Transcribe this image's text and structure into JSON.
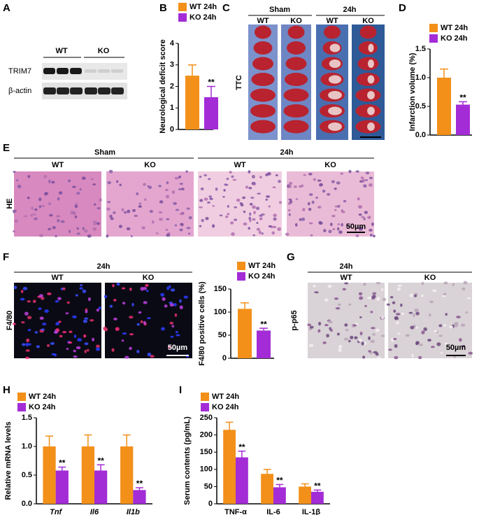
{
  "panels": {
    "labels": [
      "A",
      "B",
      "C",
      "D",
      "E",
      "F",
      "G",
      "H",
      "I"
    ]
  },
  "blot": {
    "groups": [
      "WT",
      "KO"
    ],
    "rows": [
      "TRIM7",
      "β-actin"
    ]
  },
  "ttc": {
    "groups": [
      "Sham",
      "24h"
    ],
    "columns": [
      "WT",
      "KO",
      "WT",
      "KO"
    ],
    "stain": "TTC"
  },
  "he": {
    "groups": [
      "Sham",
      "24h"
    ],
    "columns": [
      "WT",
      "KO",
      "WT",
      "KO"
    ],
    "stain": "HE",
    "scale_bar": "50µm"
  },
  "f480": {
    "group": "24h",
    "columns": [
      "WT",
      "KO"
    ],
    "stain": "F4/80",
    "scale_bar": "50µm"
  },
  "pp65": {
    "group": "24h",
    "columns": [
      "WT",
      "KO"
    ],
    "stain": "p-p65",
    "scale_bar": "50µm"
  },
  "chart_data": [
    {
      "type": "bar",
      "ylabel": "Neurological deficit score",
      "categories": [
        null
      ],
      "series": [
        {
          "name": "WT 24h",
          "color": "#f39019",
          "values": [
            2.5
          ],
          "errors": [
            0.5
          ]
        },
        {
          "name": "KO 24h",
          "color": "#a32cd6",
          "values": [
            1.5
          ],
          "errors": [
            0.5
          ],
          "annotations": [
            "**"
          ]
        }
      ],
      "ylim": [
        0,
        4
      ],
      "yticks": [
        0,
        1,
        2,
        3,
        4
      ],
      "legend": "upper right"
    },
    {
      "type": "bar",
      "ylabel": "Infarction volume (%)",
      "categories": [
        null
      ],
      "series": [
        {
          "name": "WT 24h",
          "color": "#f39019",
          "values": [
            1.0
          ],
          "errors": [
            0.15
          ]
        },
        {
          "name": "KO 24h",
          "color": "#a32cd6",
          "values": [
            0.53
          ],
          "errors": [
            0.05
          ],
          "annotations": [
            "**"
          ]
        }
      ],
      "ylim": [
        0,
        1.5
      ],
      "yticks": [
        {
          "value": 0,
          "label": "0.0"
        },
        {
          "value": 0.5,
          "label": "0.5"
        },
        {
          "value": 1,
          "label": "1.0"
        },
        {
          "value": 1.5,
          "label": "1.5"
        }
      ],
      "legend": "upper right"
    },
    {
      "type": "bar",
      "ylabel": "F4/80 positive cells (%)",
      "categories": [
        null
      ],
      "series": [
        {
          "name": "WT 24h",
          "color": "#f39019",
          "values": [
            107
          ],
          "errors": [
            13
          ]
        },
        {
          "name": "KO 24h",
          "color": "#a32cd6",
          "values": [
            60
          ],
          "errors": [
            5
          ],
          "annotations": [
            "**"
          ]
        }
      ],
      "ylim": [
        0,
        150
      ],
      "yticks": [
        0,
        50,
        100,
        150
      ],
      "legend": "upper right"
    },
    {
      "type": "bar",
      "ylabel": "Relative mRNA levels",
      "categories": [
        "Tnf",
        "Il6",
        "Il1b"
      ],
      "category_style": "italic",
      "series": [
        {
          "name": "WT 24h",
          "color": "#f39019",
          "values": [
            1.0,
            1.0,
            1.0
          ],
          "errors": [
            0.18,
            0.2,
            0.2
          ]
        },
        {
          "name": "KO 24h",
          "color": "#a32cd6",
          "values": [
            0.58,
            0.58,
            0.24
          ],
          "errors": [
            0.06,
            0.1,
            0.04
          ],
          "annotations": [
            "**",
            "**",
            "**"
          ]
        }
      ],
      "ylim": [
        0,
        1.5
      ],
      "yticks": [
        {
          "value": 0,
          "label": "0.0"
        },
        {
          "value": 0.5,
          "label": "0.5"
        },
        {
          "value": 1,
          "label": "1.0"
        },
        {
          "value": 1.5,
          "label": "1.5"
        }
      ],
      "legend": "upper left"
    },
    {
      "type": "bar",
      "ylabel": "Serum contents (pg/mL)",
      "categories": [
        "TNF-α",
        "IL-6",
        "IL-1β"
      ],
      "category_style": "normal",
      "series": [
        {
          "name": "WT 24h",
          "color": "#f39019",
          "values": [
            215,
            87,
            50
          ],
          "errors": [
            22,
            13,
            8
          ]
        },
        {
          "name": "KO 24h",
          "color": "#a32cd6",
          "values": [
            135,
            48,
            35
          ],
          "errors": [
            18,
            8,
            5
          ],
          "annotations": [
            "**",
            "**",
            "**"
          ]
        }
      ],
      "ylim": [
        0,
        250
      ],
      "yticks": [
        0,
        50,
        100,
        150,
        200,
        250
      ],
      "legend": "upper left"
    }
  ]
}
